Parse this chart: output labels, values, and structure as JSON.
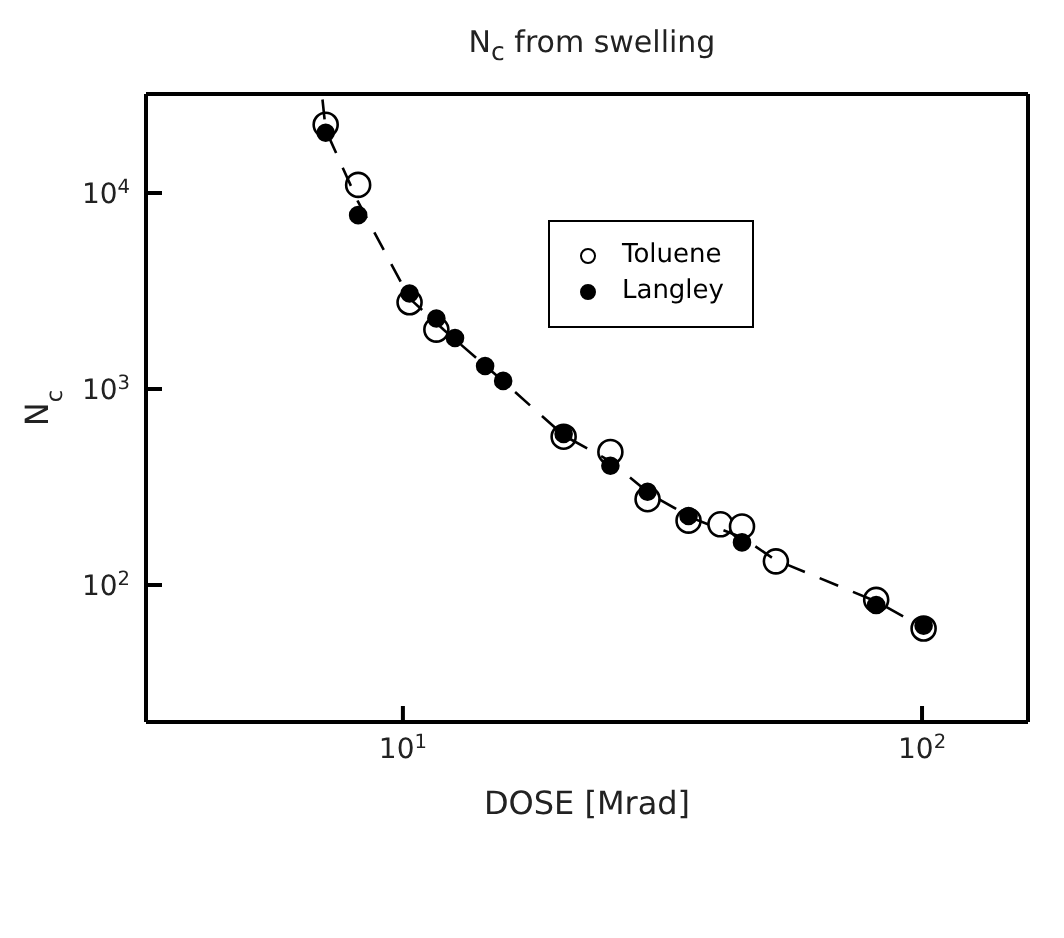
{
  "chart_data": {
    "type": "scatter",
    "title": "N$_{c}$ from swelling",
    "xlabel": "DOSE [Mrad]",
    "ylabel": "N$_{c}$",
    "log": "xy",
    "xlim": [
      3.2,
      160
    ],
    "ylim": [
      20,
      32000
    ],
    "xticks": [
      {
        "value": 10,
        "label": "10$^{1}$"
      },
      {
        "value": 100,
        "label": "10$^{2}$"
      }
    ],
    "yticks": [
      {
        "value": 100,
        "label": "10$^{2}$"
      },
      {
        "value": 1000,
        "label": "10$^{3}$"
      },
      {
        "value": 10000,
        "label": "10$^{4}$"
      }
    ],
    "legend": "top right",
    "marker": "circle",
    "series": [
      {
        "name": "Toluene",
        "color": "#ffffff",
        "x": [
          7.1,
          8.2,
          10.3,
          11.6,
          20.4,
          25.1,
          29.6,
          35.5,
          40.9,
          45.0,
          52.3,
          81.6,
          100.7
        ],
        "values": [
          22300,
          11000,
          2770,
          2010,
          571,
          477,
          274,
          213,
          204,
          199,
          132,
          84,
          60
        ]
      },
      {
        "name": "Langley",
        "color": "#000000",
        "x": [
          7.1,
          8.2,
          10.3,
          11.6,
          12.6,
          14.4,
          15.6,
          20.4,
          25.1,
          29.6,
          35.5,
          45.0,
          81.6,
          100.7
        ],
        "values": [
          20300,
          7710,
          3070,
          2290,
          1820,
          1310,
          1100,
          590,
          406,
          299,
          225,
          165,
          79,
          62
        ]
      },
      {
        "type": "line",
        "color": "#000000",
        "line_style": "dashed",
        "marker": "none",
        "x": [
          7.0,
          7.1,
          8.2,
          10.3,
          12,
          15,
          20.4,
          25,
          30,
          36,
          45,
          52,
          82,
          100
        ],
        "values": [
          30000,
          21000,
          9000,
          2900,
          2000,
          1200,
          580,
          430,
          290,
          220,
          175,
          135,
          82,
          61
        ]
      }
    ]
  }
}
